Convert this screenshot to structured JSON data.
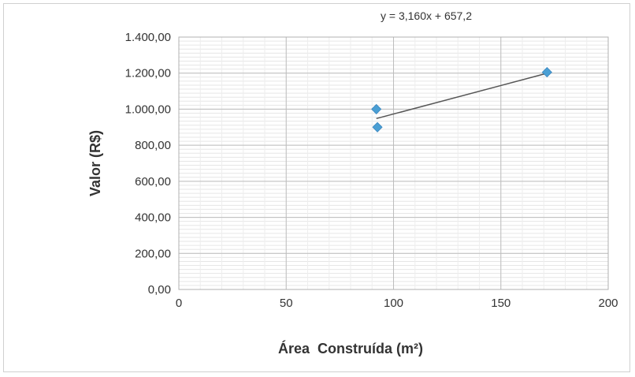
{
  "chart_data": {
    "type": "scatter",
    "title": "",
    "xlabel": "Área  Construída (m²)",
    "ylabel": "Valor (R$)",
    "xlim": [
      0,
      200
    ],
    "ylim": [
      0,
      1400
    ],
    "x_ticks": [
      "0",
      "50",
      "100",
      "150",
      "200"
    ],
    "y_ticks": [
      "0,00",
      "200,00",
      "400,00",
      "600,00",
      "800,00",
      "1.000,00",
      "1.200,00",
      "1.400,00"
    ],
    "grid": true,
    "legend": "none",
    "series": [
      {
        "marker": "diamond",
        "color": "#4a9fd4",
        "points": [
          {
            "x": 92,
            "y": 1000
          },
          {
            "x": 92.5,
            "y": 900
          },
          {
            "x": 171.5,
            "y": 1205
          }
        ]
      }
    ],
    "trendline": {
      "equation": "y = 3,160x + 657,2",
      "slope": 3.16,
      "intercept": 657.2,
      "x_range": [
        92,
        171.5
      ],
      "color": "#555555"
    }
  }
}
